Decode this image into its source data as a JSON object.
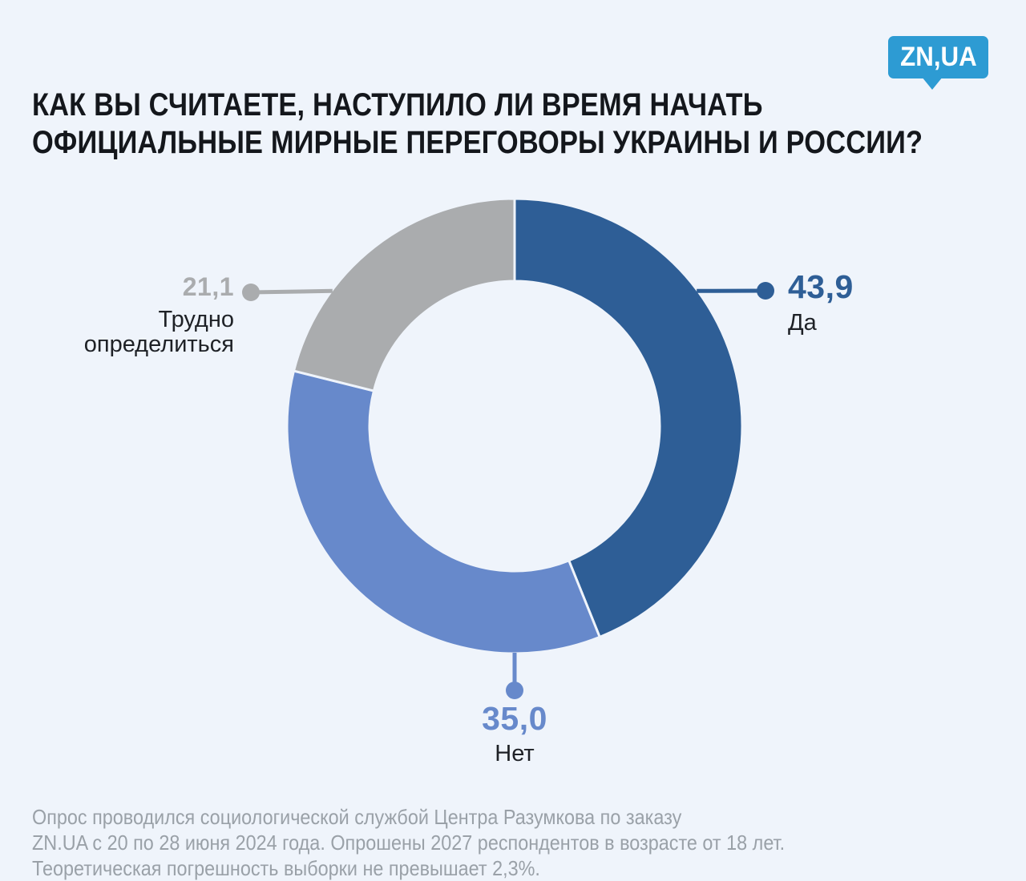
{
  "page": {
    "background_color": "#eff4fb"
  },
  "logo": {
    "text": "ZN,UA",
    "brand_color": "#2d9bd3",
    "text_color": "#ffffff"
  },
  "title": {
    "line1": "КАК ВЫ СЧИТАЕТЕ, НАСТУПИЛО ЛИ ВРЕМЯ НАЧАТЬ",
    "line2": "ОФИЦИАЛЬНЫЕ МИРНЫЕ ПЕРЕГОВОРЫ УКРАИНЫ И РОССИИ?",
    "color": "#14171c"
  },
  "chart_data": {
    "type": "pie",
    "subtype": "donut",
    "title": "КАК ВЫ СЧИТАЕТЕ, НАСТУПИЛО ЛИ ВРЕМЯ НАЧАТЬ ОФИЦИАЛЬНЫЕ МИРНЫЕ ПЕРЕГОВОРЫ УКРАИНЫ И РОССИИ?",
    "units": "%",
    "start_angle_deg": 0,
    "direction": "clockwise",
    "series": [
      {
        "name": "Да",
        "value": 43.9,
        "value_label": "43,9",
        "color": "#2e5e96"
      },
      {
        "name": "Нет",
        "value": 35.0,
        "value_label": "35,0",
        "color": "#6789cb"
      },
      {
        "name": "Трудно определиться",
        "value": 21.1,
        "value_label": "21,1",
        "color": "#aaacae"
      }
    ],
    "layout": {
      "center": [
        642,
        532
      ],
      "outer_radius": 284,
      "inner_radius": 181,
      "separator_color": "#eff4fb",
      "separator_width": 3,
      "connector_width": 5,
      "dot_radius": 11,
      "connectors": [
        {
          "series": 0,
          "from_angle_deg": 53.4,
          "to": [
            955,
            363
          ]
        },
        {
          "series": 1,
          "from_angle_deg": 180,
          "to": [
            642,
            862
          ]
        },
        {
          "series": 2,
          "from_angle_deg": 306.6,
          "to": [
            313,
            365
          ]
        }
      ]
    }
  },
  "footer": {
    "line1": "Опрос проводился социологической службой Центра Разумкова по заказу",
    "line2": "ZN.UA с 20 по 28 июня 2024 года. Опрошены 2027 респондентов в возрасте от 18 лет.",
    "line3": "Теоретическая погрешность выборки не превышает 2,3%.",
    "color": "#9aa1a8"
  }
}
